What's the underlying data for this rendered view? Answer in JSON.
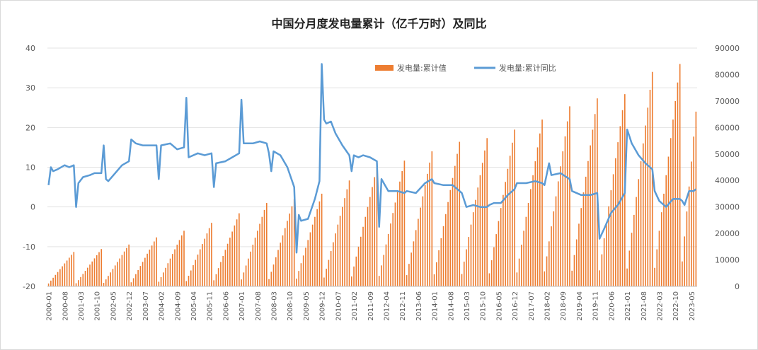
{
  "chart_data": {
    "type": "bar+line",
    "title": "中国分月度发电量累计（亿千万时）及同比",
    "xlabel": "",
    "ylabel_left": "",
    "ylabel_right": "",
    "ylim_left": [
      -20,
      40
    ],
    "ylim_right": [
      0,
      90000
    ],
    "grid": true,
    "legend_position": "top-right",
    "left_ticks": [
      "40",
      "30",
      "20",
      "10",
      "0",
      "-10",
      "-20"
    ],
    "right_ticks": [
      "90000",
      "80000",
      "70000",
      "60000",
      "50000",
      "40000",
      "30000",
      "20000",
      "10000",
      "0"
    ],
    "x_tick_labels": [
      "2000-01",
      "2000-08",
      "2001-03",
      "2001-10",
      "2002-05",
      "2002-12",
      "2003-07",
      "2004-02",
      "2004-09",
      "2005-04",
      "2005-11",
      "2006-06",
      "2007-01",
      "2007-08",
      "2008-03",
      "2008-10",
      "2009-05",
      "2009-12",
      "2010-07",
      "2011-02",
      "2011-09",
      "2012-04",
      "2012-11",
      "2013-06",
      "2014-01",
      "2014-08",
      "2015-03",
      "2015-10",
      "2016-05",
      "2016-12",
      "2017-07",
      "2018-02",
      "2018-09",
      "2019-04",
      "2019-11",
      "2020-06",
      "2021-01",
      "2021-08",
      "2022-03",
      "2022-10",
      "2023-05"
    ],
    "period": {
      "start": "2000-01",
      "end": "2023-07"
    },
    "series": [
      {
        "name": "发电量:累计值",
        "type": "bar",
        "axis": "right",
        "color": "#ED7D31",
        "note": "annual December cumulative totals (data units); monthly values accumulate from January",
        "annual_totals": [
          {
            "year": 2000,
            "value": 13000
          },
          {
            "year": 2001,
            "value": 14100
          },
          {
            "year": 2002,
            "value": 15800
          },
          {
            "year": 2003,
            "value": 18500
          },
          {
            "year": 2004,
            "value": 21000
          },
          {
            "year": 2005,
            "value": 24000
          },
          {
            "year": 2006,
            "value": 27600
          },
          {
            "year": 2007,
            "value": 31500
          },
          {
            "year": 2008,
            "value": 33000
          },
          {
            "year": 2009,
            "value": 35000
          },
          {
            "year": 2010,
            "value": 40000
          },
          {
            "year": 2011,
            "value": 45000
          },
          {
            "year": 2012,
            "value": 47500
          },
          {
            "year": 2013,
            "value": 51000
          },
          {
            "year": 2014,
            "value": 54600
          },
          {
            "year": 2015,
            "value": 56000
          },
          {
            "year": 2016,
            "value": 59200
          },
          {
            "year": 2017,
            "value": 63000
          },
          {
            "year": 2018,
            "value": 68000
          },
          {
            "year": 2019,
            "value": 71000
          },
          {
            "year": 2020,
            "value": 72600
          },
          {
            "year": 2021,
            "value": 81000
          },
          {
            "year": 2022,
            "value": 84000
          },
          {
            "year": 2023,
            "value": 66000
          }
        ]
      },
      {
        "name": "发电量:累计同比",
        "type": "line",
        "axis": "left",
        "color": "#5B9BD5",
        "points": [
          [
            "2000-01",
            5.5
          ],
          [
            "2000-02",
            10
          ],
          [
            "2000-03",
            9
          ],
          [
            "2000-05",
            9.5
          ],
          [
            "2000-08",
            10.5
          ],
          [
            "2000-10",
            10
          ],
          [
            "2000-12",
            10.5
          ],
          [
            "2001-01",
            0
          ],
          [
            "2001-02",
            6
          ],
          [
            "2001-04",
            7.5
          ],
          [
            "2001-07",
            8
          ],
          [
            "2001-09",
            8.5
          ],
          [
            "2001-12",
            8.5
          ],
          [
            "2002-01",
            15.5
          ],
          [
            "2002-02",
            7
          ],
          [
            "2002-03",
            6.5
          ],
          [
            "2002-06",
            8.5
          ],
          [
            "2002-09",
            10.5
          ],
          [
            "2002-12",
            11.5
          ],
          [
            "2003-01",
            17
          ],
          [
            "2003-03",
            16
          ],
          [
            "2003-06",
            15.5
          ],
          [
            "2003-09",
            15.5
          ],
          [
            "2003-12",
            15.5
          ],
          [
            "2004-01",
            7
          ],
          [
            "2004-02",
            15.5
          ],
          [
            "2004-06",
            16
          ],
          [
            "2004-09",
            14.5
          ],
          [
            "2004-12",
            15
          ],
          [
            "2005-01",
            27.5
          ],
          [
            "2005-02",
            12.5
          ],
          [
            "2005-06",
            13.5
          ],
          [
            "2005-09",
            13
          ],
          [
            "2005-12",
            13.5
          ],
          [
            "2006-01",
            5
          ],
          [
            "2006-02",
            11
          ],
          [
            "2006-06",
            11.5
          ],
          [
            "2006-09",
            12.5
          ],
          [
            "2006-12",
            13.5
          ],
          [
            "2007-01",
            27
          ],
          [
            "2007-02",
            16
          ],
          [
            "2007-06",
            16
          ],
          [
            "2007-09",
            16.5
          ],
          [
            "2007-12",
            16
          ],
          [
            "2008-01",
            13.5
          ],
          [
            "2008-02",
            9
          ],
          [
            "2008-03",
            14
          ],
          [
            "2008-06",
            13
          ],
          [
            "2008-09",
            10
          ],
          [
            "2008-12",
            5
          ],
          [
            "2009-01",
            -11.5
          ],
          [
            "2009-02",
            -2
          ],
          [
            "2009-03",
            -3.5
          ],
          [
            "2009-06",
            -3
          ],
          [
            "2009-09",
            2
          ],
          [
            "2009-11",
            6.5
          ],
          [
            "2009-12",
            36
          ],
          [
            "2010-01",
            22
          ],
          [
            "2010-02",
            21
          ],
          [
            "2010-04",
            21.5
          ],
          [
            "2010-06",
            18.5
          ],
          [
            "2010-09",
            15.5
          ],
          [
            "2010-12",
            13
          ],
          [
            "2011-01",
            9
          ],
          [
            "2011-02",
            13
          ],
          [
            "2011-04",
            12.5
          ],
          [
            "2011-06",
            13
          ],
          [
            "2011-09",
            12.5
          ],
          [
            "2011-12",
            11.5
          ],
          [
            "2012-01",
            -5
          ],
          [
            "2012-02",
            7
          ],
          [
            "2012-05",
            4
          ],
          [
            "2012-09",
            4
          ],
          [
            "2012-12",
            3.5
          ],
          [
            "2013-01",
            4
          ],
          [
            "2013-05",
            3.5
          ],
          [
            "2013-09",
            6
          ],
          [
            "2013-12",
            7
          ],
          [
            "2014-01",
            6
          ],
          [
            "2014-05",
            5.5
          ],
          [
            "2014-09",
            5.5
          ],
          [
            "2014-12",
            4
          ],
          [
            "2015-01",
            3.5
          ],
          [
            "2015-03",
            0
          ],
          [
            "2015-06",
            0.5
          ],
          [
            "2015-09",
            0
          ],
          [
            "2015-12",
            0
          ],
          [
            "2016-01",
            0.5
          ],
          [
            "2016-03",
            1
          ],
          [
            "2016-06",
            1
          ],
          [
            "2016-09",
            3
          ],
          [
            "2016-12",
            4.5
          ],
          [
            "2017-01",
            6
          ],
          [
            "2017-05",
            6
          ],
          [
            "2017-09",
            6.5
          ],
          [
            "2017-12",
            6
          ],
          [
            "2018-01",
            5.5
          ],
          [
            "2018-03",
            11
          ],
          [
            "2018-04",
            8
          ],
          [
            "2018-08",
            8.5
          ],
          [
            "2018-12",
            7
          ],
          [
            "2019-01",
            4
          ],
          [
            "2019-05",
            3
          ],
          [
            "2019-09",
            3
          ],
          [
            "2019-12",
            3.5
          ],
          [
            "2020-01",
            -8
          ],
          [
            "2020-03",
            -5.5
          ],
          [
            "2020-06",
            -1.5
          ],
          [
            "2020-09",
            0.5
          ],
          [
            "2020-12",
            3.5
          ],
          [
            "2021-01",
            19.5
          ],
          [
            "2021-03",
            16
          ],
          [
            "2021-06",
            13
          ],
          [
            "2021-09",
            11
          ],
          [
            "2021-12",
            9.5
          ],
          [
            "2022-01",
            4
          ],
          [
            "2022-03",
            1.5
          ],
          [
            "2022-06",
            0
          ],
          [
            "2022-09",
            2
          ],
          [
            "2022-12",
            2
          ],
          [
            "2023-01",
            1.5
          ],
          [
            "2023-02",
            0.5
          ],
          [
            "2023-04",
            4
          ],
          [
            "2023-06",
            4
          ],
          [
            "2023-07",
            4.5
          ]
        ]
      }
    ]
  }
}
